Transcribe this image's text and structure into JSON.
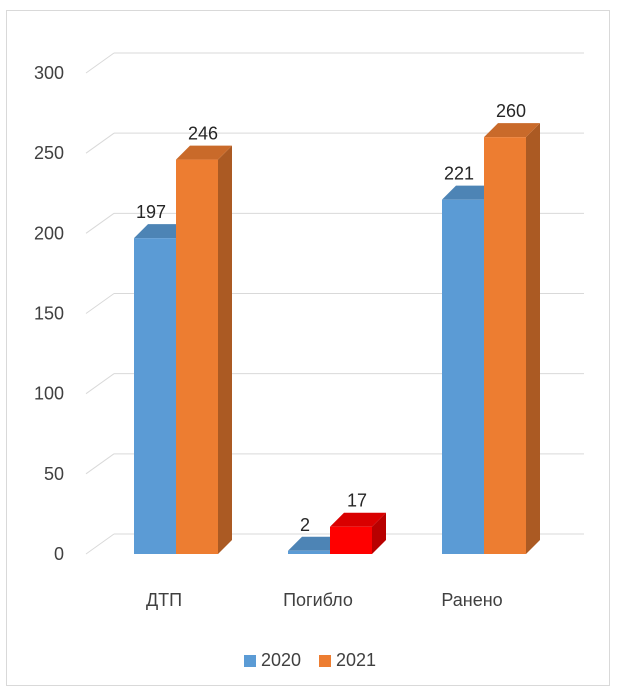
{
  "chart_data": {
    "type": "bar",
    "title": "",
    "xlabel": "",
    "ylabel": "",
    "categories": [
      "ДТП",
      "Погибло",
      "Ранено"
    ],
    "series": [
      {
        "name": "2020",
        "values": [
          197,
          2,
          221
        ],
        "color": "#5b9bd5"
      },
      {
        "name": "2021",
        "values": [
          246,
          17,
          260
        ],
        "color": "#ed7d31"
      }
    ],
    "highlight": {
      "series": 1,
      "index": 1,
      "color": "#ff0000"
    },
    "ylim": [
      0,
      300
    ],
    "yticks": [
      0,
      50,
      100,
      150,
      200,
      250,
      300
    ],
    "grid": true,
    "legend_position": "bottom"
  }
}
